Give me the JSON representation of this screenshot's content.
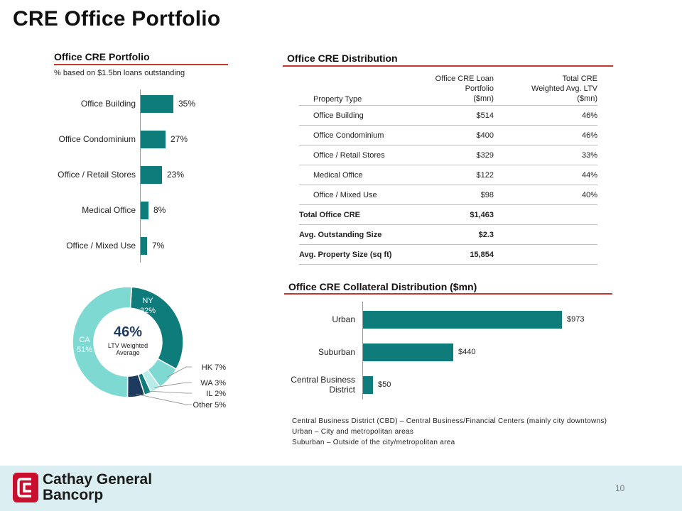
{
  "page": {
    "title": "CRE Office Portfolio",
    "page_number": "10"
  },
  "portfolio": {
    "title": "Office CRE Portfolio",
    "subtitle": "% based on $1.5bn loans outstanding"
  },
  "distribution": {
    "title": "Office CRE Distribution",
    "headers": {
      "property_type": "Property Type",
      "loan_l1": "Office CRE Loan",
      "loan_l2": "Portfolio",
      "loan_l3": "($mn)",
      "ltv_l1": "Total CRE",
      "ltv_l2": "Weighted Avg. LTV",
      "ltv_l3": "($mn)"
    },
    "rows": [
      {
        "type": "Office Building",
        "loan": "$514",
        "ltv": "46%"
      },
      {
        "type": "Office Condominium",
        "loan": "$400",
        "ltv": "46%"
      },
      {
        "type": "Office / Retail Stores",
        "loan": "$329",
        "ltv": "33%"
      },
      {
        "type": "Medical Office",
        "loan": "$122",
        "ltv": "44%"
      },
      {
        "type": "Office / Mixed Use",
        "loan": "$98",
        "ltv": "40%"
      }
    ],
    "summary": [
      {
        "label": "Total Office CRE",
        "value": "$1,463"
      },
      {
        "label": "Avg. Outstanding Size",
        "value": "$2.3"
      },
      {
        "label": "Avg. Property Size (sq ft)",
        "value": "15,854"
      }
    ]
  },
  "collateral": {
    "title": "Office CRE Collateral Distribution ($mn)",
    "notes": [
      "Central Business District (CBD) – Central Business/Financial Centers (mainly city downtowns)",
      "Urban – City and metropolitan areas",
      "Suburban – Outside of the city/metropolitan area"
    ]
  },
  "donut": {
    "center_value": "46%",
    "center_l1": "LTV Weighted",
    "center_l2": "Average"
  },
  "logo": {
    "line1": "Cathay General",
    "line2": "Bancorp"
  },
  "colors": {
    "teal": "#0e7c7b",
    "light_teal": "#7fd9d3",
    "navy": "#1f3a5f",
    "red_rule": "#c0392b",
    "footer_bg": "#dbeff2"
  },
  "chart_data": [
    {
      "type": "bar",
      "orientation": "horizontal",
      "categories": [
        "Office Building",
        "Office Condominium",
        "Office / Retail Stores",
        "Medical Office",
        "Office / Mixed Use"
      ],
      "values": [
        35,
        27,
        23,
        8,
        7
      ],
      "value_labels": [
        "35%",
        "27%",
        "23%",
        "8%",
        "7%"
      ],
      "unit": "%"
    },
    {
      "type": "pie",
      "variant": "donut",
      "categories": [
        "NY",
        "HK",
        "WA",
        "IL",
        "Other",
        "CA"
      ],
      "values": [
        32,
        7,
        3,
        2,
        5,
        51
      ],
      "labels": [
        "32%",
        "HK 7%",
        "WA 3%",
        "IL 2%",
        "Other 5%",
        "51%"
      ],
      "colors": [
        "#0e7c7b",
        "#7fd9d3",
        "#b8ece8",
        "#0e7c7b",
        "#1f3a5f",
        "#7fd9d3"
      ]
    },
    {
      "type": "bar",
      "orientation": "horizontal",
      "categories": [
        "Urban",
        "Suburban",
        "Central Business District"
      ],
      "values": [
        973,
        440,
        50
      ],
      "value_labels": [
        "$973",
        "$440",
        "$50"
      ]
    }
  ]
}
